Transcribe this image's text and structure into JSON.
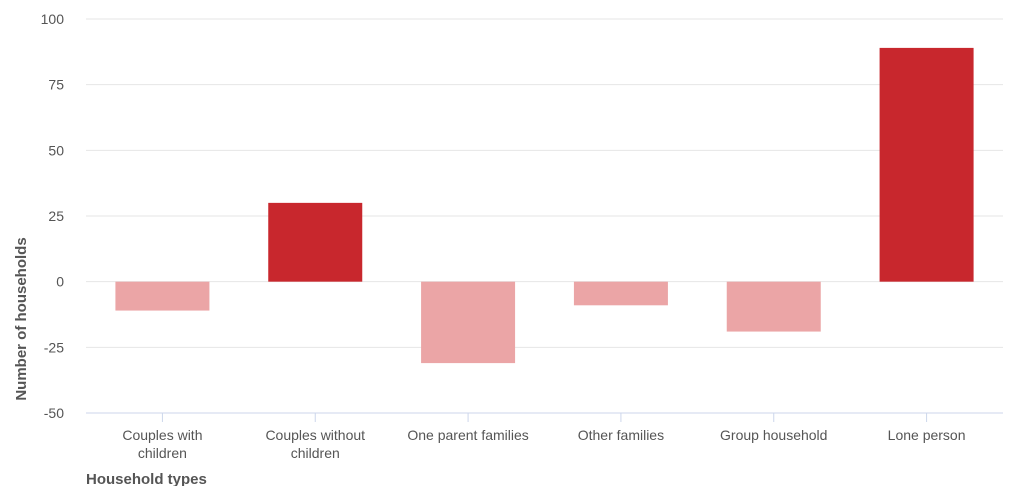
{
  "chart_data": {
    "type": "bar",
    "title": "",
    "xlabel": "Household types",
    "ylabel": "Number of households",
    "ylim": [
      -50,
      100
    ],
    "yticks": [
      -50,
      -25,
      0,
      25,
      50,
      75,
      100
    ],
    "grid": true,
    "legend": "none",
    "categories": [
      [
        "Couples with",
        "children"
      ],
      [
        "Couples without",
        "children"
      ],
      [
        "One parent families"
      ],
      [
        "Other families"
      ],
      [
        "Group household"
      ],
      [
        "Lone person"
      ]
    ],
    "values": [
      -11,
      30,
      -31,
      -9,
      -19,
      89
    ],
    "colors": {
      "positive": "#c8272d",
      "negative": "#eba5a6"
    }
  }
}
